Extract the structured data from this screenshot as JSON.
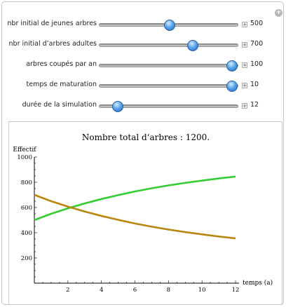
{
  "controls": [
    {
      "label": "nbr initial de jeunes arbres",
      "value": "500",
      "fraction": 0.5
    },
    {
      "label": "nbr initial d’arbres adultes",
      "value": "700",
      "fraction": 0.67
    },
    {
      "label": "arbres coupés par an",
      "value": "100",
      "fraction": 0.95
    },
    {
      "label": "temps de maturation",
      "value": "10",
      "fraction": 0.95
    },
    {
      "label": "durée de la simulation",
      "value": "12",
      "fraction": 0.13
    }
  ],
  "icons": {
    "corner": "plus-circle-icon",
    "stepper": "plus-square-icon"
  },
  "chart_data": {
    "type": "line",
    "title": "Nombre total d‘arbres : 1200.",
    "xlabel": "temps (a)",
    "ylabel": "Effectif",
    "xlim": [
      0,
      12
    ],
    "ylim": [
      0,
      1000
    ],
    "x_ticks": [
      2,
      4,
      6,
      8,
      10,
      12
    ],
    "y_ticks": [
      200,
      400,
      600,
      800,
      1000
    ],
    "grid": false,
    "series": [
      {
        "color": "#33cc33",
        "x": [
          0,
          1,
          2,
          3,
          4,
          5,
          6,
          7,
          8,
          9,
          10,
          11,
          12
        ],
        "y": [
          500,
          550,
          593,
          632,
          667,
          698,
          727,
          752,
          775,
          795,
          813,
          830,
          845
        ]
      },
      {
        "color": "#b8860b",
        "x": [
          0,
          1,
          2,
          3,
          4,
          5,
          6,
          7,
          8,
          9,
          10,
          11,
          12
        ],
        "y": [
          700,
          650,
          607,
          568,
          533,
          502,
          473,
          448,
          425,
          405,
          387,
          370,
          355
        ]
      }
    ]
  }
}
